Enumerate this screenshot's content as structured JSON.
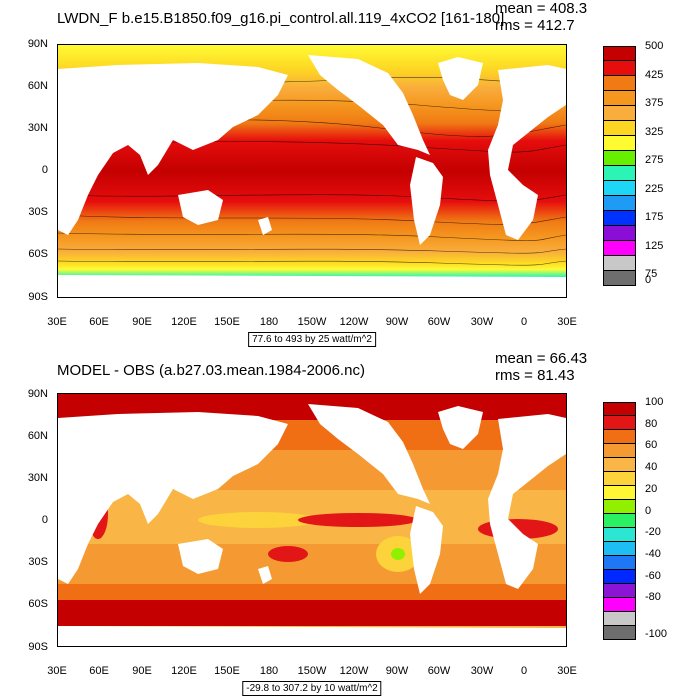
{
  "panels": [
    {
      "title": "LWDN_F b.e15.B1850.f09_g16.pi_control.all.119_4xCO2 [161-180]",
      "mean": "mean = 408.3",
      "rms": "rms = 412.7",
      "range_note": "77.6 to 493 by 25 watt/m^2",
      "lat_labels": [
        "90N",
        "60N",
        "30N",
        "0",
        "30S",
        "60S",
        "90S"
      ],
      "lon_labels": [
        "30E",
        "60E",
        "90E",
        "120E",
        "150E",
        "180",
        "150W",
        "120W",
        "90W",
        "60W",
        "30W",
        "0",
        "30E"
      ],
      "colorbar": {
        "colors": [
          "#c40000",
          "#e60d0d",
          "#f07a14",
          "#f5961e",
          "#f9ad3c",
          "#fdd523",
          "#fffb33",
          "#66f000",
          "#2af5b4",
          "#1ed6f5",
          "#1e9cf5",
          "#0032ff",
          "#8b0ed6",
          "#ff00ff",
          "#c8c8c8",
          "#6e6e6e"
        ],
        "labels": [
          "500",
          "425",
          "375",
          "325",
          "275",
          "225",
          "175",
          "125",
          "75",
          "0"
        ]
      }
    },
    {
      "title": "MODEL - OBS (a.b27.03.mean.1984-2006.nc)",
      "mean": "mean = 66.43",
      "rms": "rms = 81.43",
      "range_note": "-29.8 to 307.2 by 10 watt/m^2",
      "lat_labels": [
        "90N",
        "60N",
        "30N",
        "0",
        "30S",
        "60S",
        "90S"
      ],
      "lon_labels": [
        "30E",
        "60E",
        "90E",
        "120E",
        "150E",
        "180",
        "150W",
        "120W",
        "90W",
        "60W",
        "30W",
        "0",
        "30E"
      ],
      "colorbar": {
        "colors": [
          "#c40000",
          "#e21616",
          "#f06e14",
          "#f59a32",
          "#f9b546",
          "#fdd33c",
          "#fff733",
          "#90f000",
          "#2af064",
          "#2ae6d2",
          "#1ebef5",
          "#1e78f5",
          "#0028ff",
          "#8b14d6",
          "#ff00ff",
          "#c8c8c8",
          "#6e6e6e"
        ],
        "labels": [
          "100",
          "80",
          "60",
          "40",
          "20",
          "0",
          "-20",
          "-40",
          "-60",
          "-80",
          "-100"
        ]
      }
    }
  ]
}
